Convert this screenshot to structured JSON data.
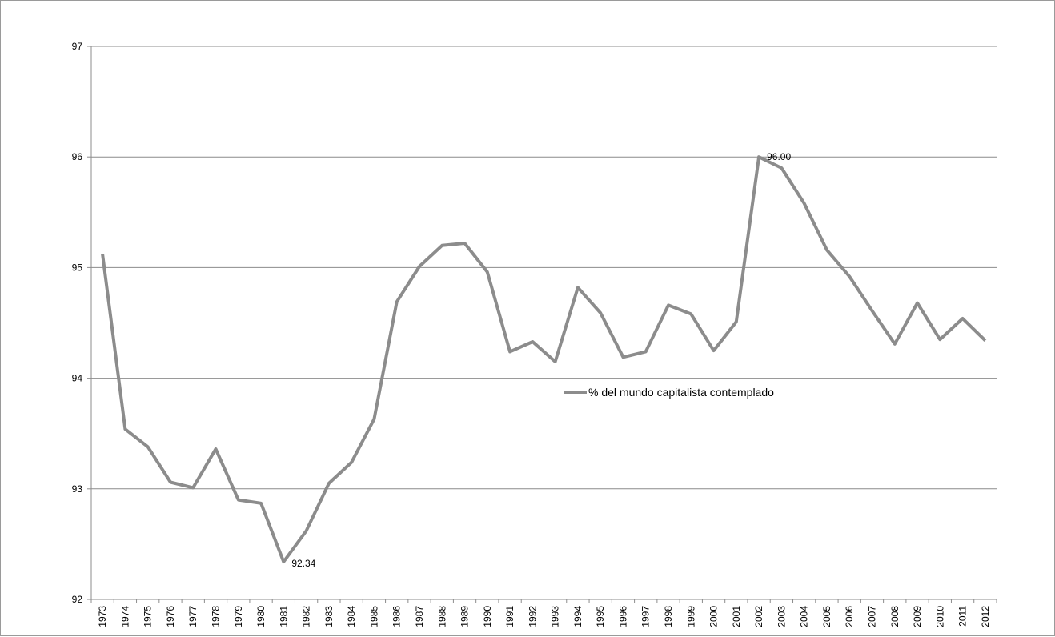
{
  "chart_data": {
    "type": "line",
    "title": "",
    "xlabel": "",
    "ylabel": "",
    "ylim": [
      92,
      97
    ],
    "yticks": [
      92,
      93,
      94,
      95,
      96,
      97
    ],
    "grid": "horizontal",
    "legend_placement": "center",
    "x": [
      "1973",
      "1974",
      "1975",
      "1976",
      "1977",
      "1978",
      "1979",
      "1980",
      "1981",
      "1982",
      "1983",
      "1984",
      "1985",
      "1986",
      "1987",
      "1988",
      "1989",
      "1990",
      "1991",
      "1992",
      "1993",
      "1994",
      "1995",
      "1996",
      "1997",
      "1998",
      "1999",
      "2000",
      "2001",
      "2002",
      "2003",
      "2004",
      "2005",
      "2006",
      "2007",
      "2008",
      "2009",
      "2010",
      "2011",
      "2012"
    ],
    "series": [
      {
        "name": "% del mundo capitalista contemplado",
        "color": "#8c8c8c",
        "values": [
          95.12,
          93.54,
          93.38,
          93.06,
          93.01,
          93.36,
          92.9,
          92.87,
          92.34,
          92.62,
          93.05,
          93.24,
          93.63,
          94.69,
          95.01,
          95.2,
          95.22,
          94.96,
          94.24,
          94.33,
          94.15,
          94.82,
          94.59,
          94.19,
          94.24,
          94.66,
          94.58,
          94.25,
          94.51,
          96.0,
          95.9,
          95.58,
          95.16,
          94.92,
          94.61,
          94.31,
          94.68,
          94.35,
          94.54,
          94.34
        ]
      }
    ],
    "annotations": [
      {
        "x": "1981",
        "text": "92.34"
      },
      {
        "x": "2002",
        "text": "96.00"
      }
    ]
  }
}
